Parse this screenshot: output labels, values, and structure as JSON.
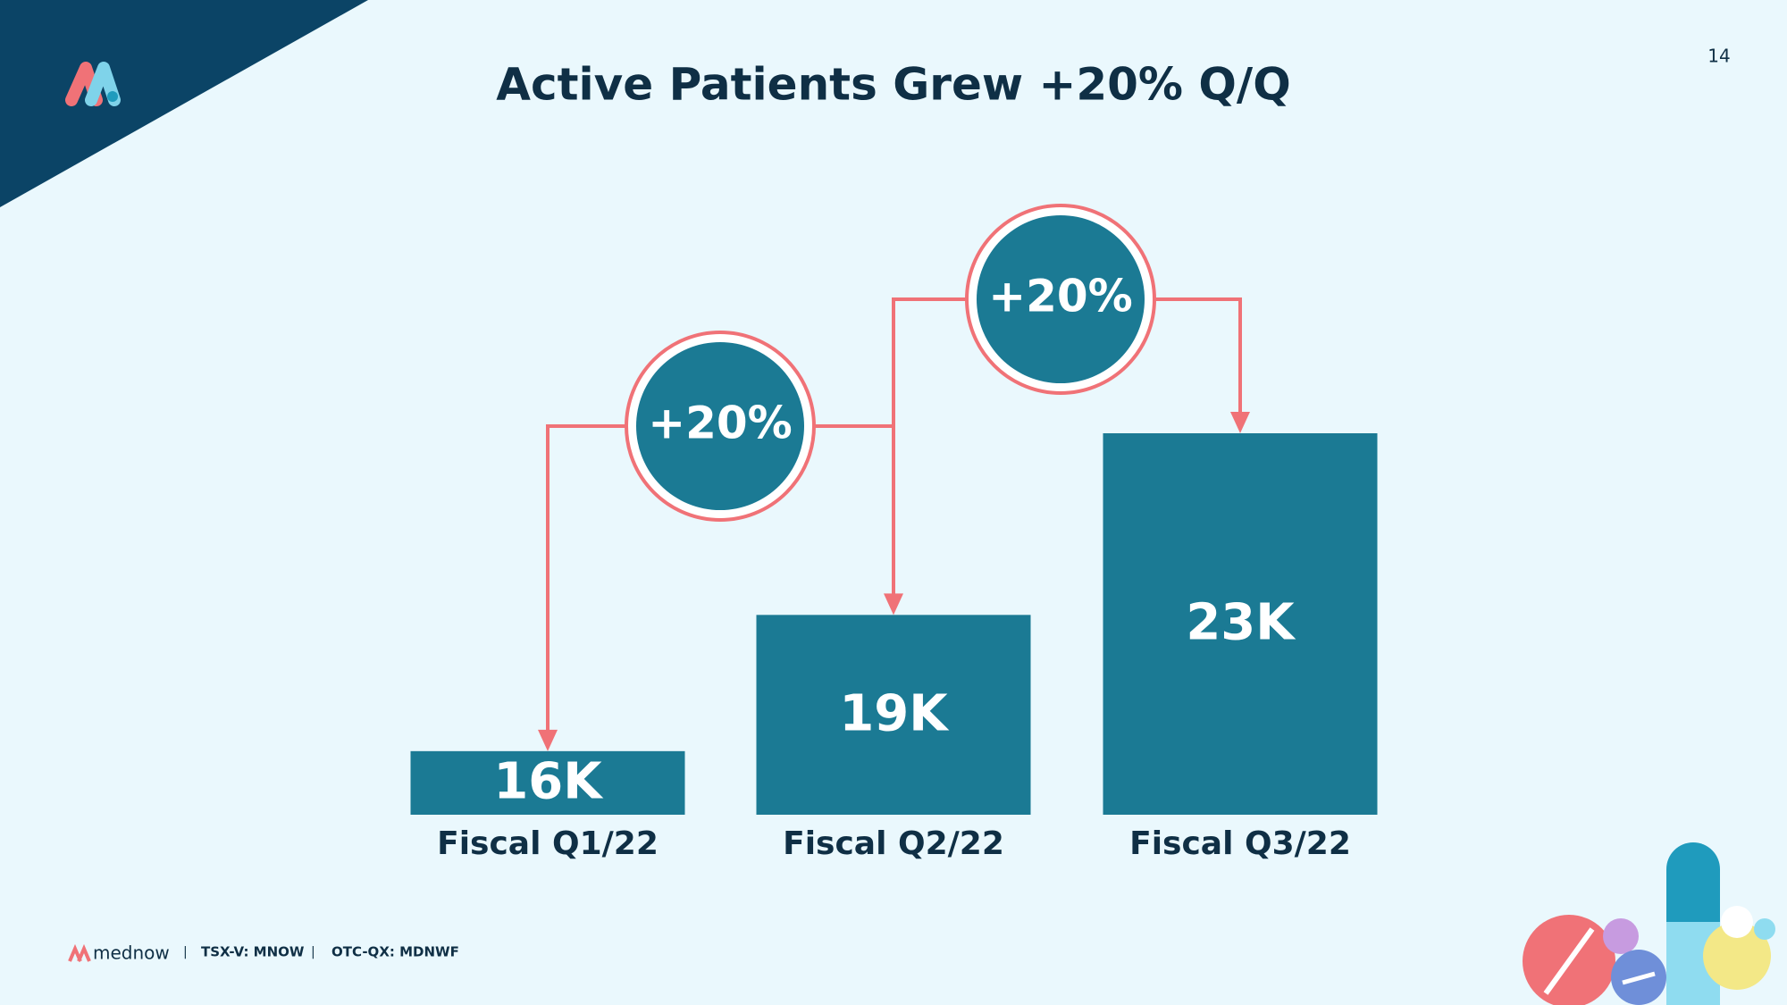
{
  "chart_data": {
    "type": "bar",
    "title": "Active Patients Grew +20%  Q/Q",
    "categories": [
      "Fiscal Q1/22",
      "Fiscal Q2/22",
      "Fiscal Q3/22"
    ],
    "values": [
      16,
      19,
      23
    ],
    "value_labels": [
      "16K",
      "19K",
      "23K"
    ],
    "color": "#1b7a94",
    "annotations": [
      "+20%",
      "+20%"
    ],
    "annotation_color": "#f07277"
  },
  "page_number": "14",
  "footer": {
    "brand": "mednow",
    "listings": [
      "TSX-V: MNOW",
      "OTC-QX: MDNWF"
    ]
  }
}
